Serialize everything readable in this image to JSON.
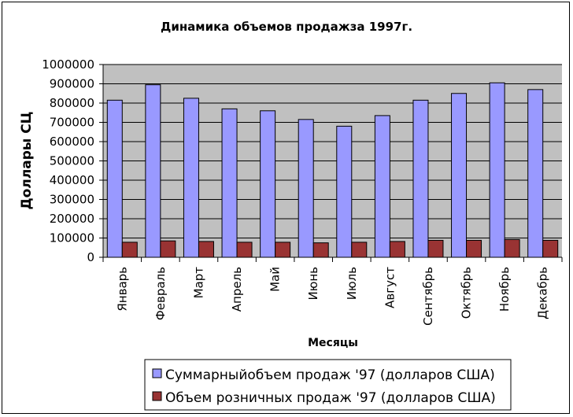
{
  "colors": {
    "plot_background": "#c0c0c0",
    "series_total": "#9999ff",
    "series_retail": "#993333",
    "gridline": "#000000",
    "axis": "#000000",
    "background": "#ffffff"
  },
  "chart_data": {
    "type": "bar",
    "title": "Динамика объемов продажза 1997г.",
    "xlabel": "Месяцы",
    "ylabel": "Доллары СЦ",
    "ylim": [
      0,
      1000000
    ],
    "y_ticks": [
      0,
      100000,
      200000,
      300000,
      400000,
      500000,
      600000,
      700000,
      800000,
      900000,
      1000000
    ],
    "grid": true,
    "legend_position": "bottom-right",
    "categories": [
      "Январь",
      "Февраль",
      "Март",
      "Апрель",
      "Май",
      "Июнь",
      "Июль",
      "Август",
      "Сентябрь",
      "Октябрь",
      "Ноябрь",
      "Декабрь"
    ],
    "series": [
      {
        "name": "Суммарныйобъем продаж '97 (долларов США)",
        "color": "#9999ff",
        "values": [
          815000,
          895000,
          825000,
          770000,
          760000,
          715000,
          680000,
          735000,
          815000,
          850000,
          905000,
          870000
        ]
      },
      {
        "name": "Объем розничных продаж '97 (долларов США)",
        "color": "#993333",
        "values": [
          78000,
          85000,
          82000,
          78000,
          78000,
          75000,
          78000,
          82000,
          88000,
          88000,
          92000,
          88000
        ]
      }
    ]
  }
}
